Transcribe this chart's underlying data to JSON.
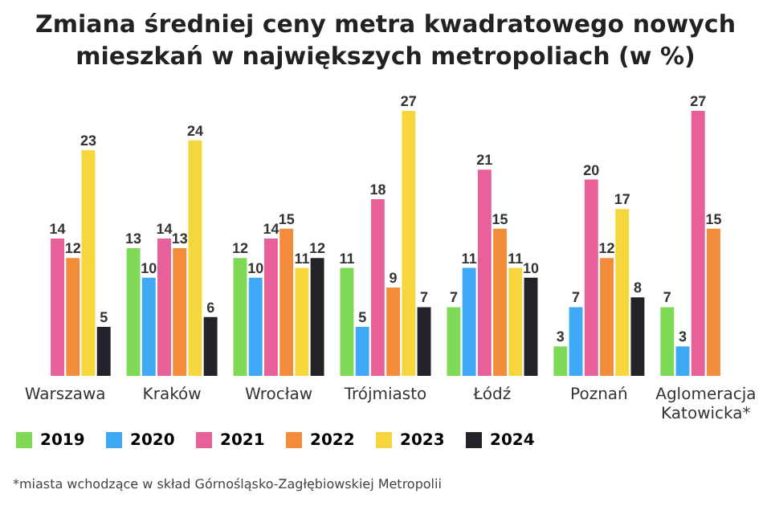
{
  "chart_data": {
    "type": "bar",
    "title": "Zmiana średniej ceny metra kwadratowego nowych mieszkań w największych metropoliach (w %)",
    "categories": [
      "Warszawa",
      "Kraków",
      "Wrocław",
      "Trójmiasto",
      "Łódź",
      "Poznań",
      "Aglomeracja Katowicka*"
    ],
    "series": [
      {
        "name": "2019",
        "color": "#7ed957",
        "values": [
          null,
          13,
          12,
          11,
          7,
          3,
          7
        ]
      },
      {
        "name": "2020",
        "color": "#3fa9f5",
        "values": [
          null,
          10,
          10,
          5,
          11,
          7,
          3
        ]
      },
      {
        "name": "2021",
        "color": "#e8609a",
        "values": [
          14,
          14,
          14,
          18,
          21,
          20,
          27
        ]
      },
      {
        "name": "2022",
        "color": "#f28c3a",
        "values": [
          12,
          13,
          15,
          9,
          15,
          12,
          15
        ]
      },
      {
        "name": "2023",
        "color": "#f5d63d",
        "values": [
          23,
          24,
          11,
          27,
          11,
          17,
          null
        ]
      },
      {
        "name": "2024",
        "color": "#222228",
        "values": [
          5,
          6,
          12,
          7,
          10,
          8,
          null
        ]
      }
    ],
    "data_labels": true,
    "legend": "bottom",
    "grid": false,
    "annotations": [
      "*miasta wchodzące w skład Górnośląsko-Zagłębiowskiej Metropolii"
    ]
  }
}
